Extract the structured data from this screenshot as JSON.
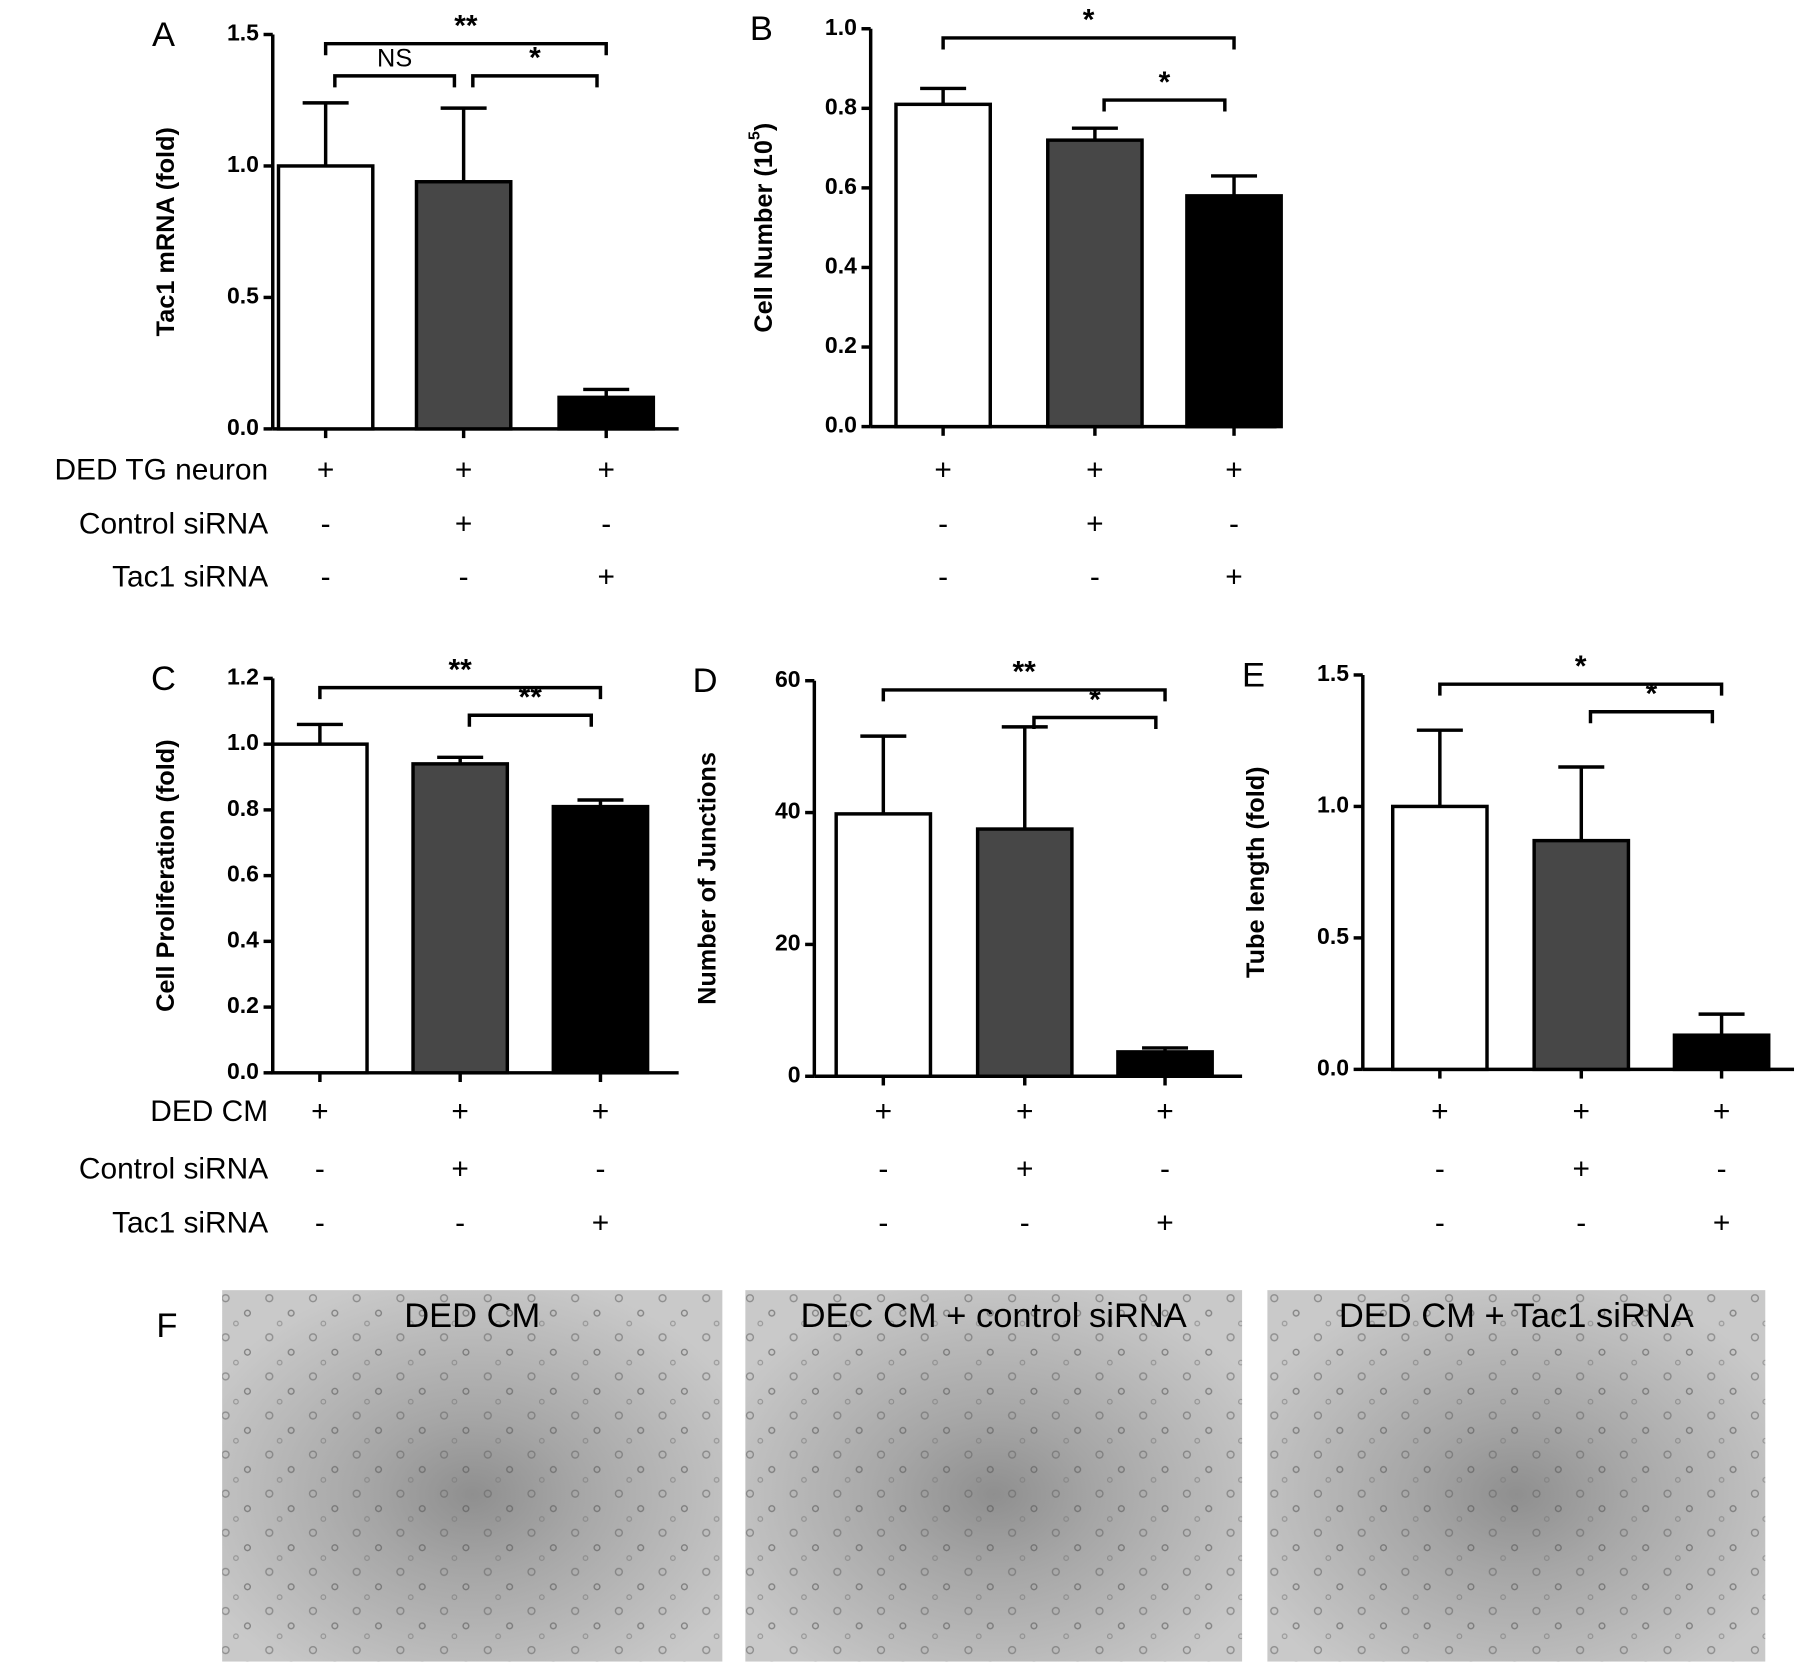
{
  "chart_data": [
    {
      "type": "bar",
      "panel": "A",
      "y_label": "Tac1 mRNA (fold)",
      "values": [
        1.0,
        0.94,
        0.12
      ],
      "errors": [
        0.24,
        0.28,
        0.03
      ],
      "colors": [
        "#ffffff",
        "#474747",
        "#000000"
      ],
      "ylim": [
        0,
        1.5
      ],
      "yticks": [
        {
          "value": 0,
          "label": "0.0"
        },
        {
          "value": 0.5,
          "label": "0.5"
        },
        {
          "value": 1,
          "label": "1.0"
        },
        {
          "value": 1.5,
          "label": "1.5"
        }
      ],
      "significance": [
        {
          "pair": [
            0,
            2
          ],
          "label": "**"
        },
        {
          "pair": [
            0,
            1
          ],
          "label": "NS"
        },
        {
          "pair": [
            1,
            2
          ],
          "label": "*"
        }
      ],
      "conditions": [
        {
          "label": "DED TG neuron",
          "values": [
            "+",
            "+",
            "+"
          ]
        },
        {
          "label": "Control siRNA",
          "values": [
            "-",
            "+",
            "-"
          ]
        },
        {
          "label": "Tac1 siRNA",
          "values": [
            "-",
            "-",
            "+"
          ]
        }
      ]
    },
    {
      "type": "bar",
      "panel": "B",
      "y_label": "Cell Number (10",
      "y_label_sup": "5",
      "y_label_end": ")",
      "values": [
        0.81,
        0.72,
        0.58
      ],
      "errors": [
        0.04,
        0.03,
        0.05
      ],
      "colors": [
        "#ffffff",
        "#474747",
        "#000000"
      ],
      "ylim": [
        0,
        1
      ],
      "yticks": [
        {
          "value": 0,
          "label": "0.0"
        },
        {
          "value": 0.2,
          "label": "0.2"
        },
        {
          "value": 0.4,
          "label": "0.4"
        },
        {
          "value": 0.6,
          "label": "0.6"
        },
        {
          "value": 0.8,
          "label": "0.8"
        },
        {
          "value": 1,
          "label": "1.0"
        }
      ],
      "significance": [
        {
          "pair": [
            0,
            2
          ],
          "label": "*"
        },
        {
          "pair": [
            1,
            2
          ],
          "label": "*"
        }
      ],
      "conditions": [
        {
          "values": [
            "+",
            "+",
            "+"
          ]
        },
        {
          "values": [
            "-",
            "+",
            "-"
          ]
        },
        {
          "values": [
            "-",
            "-",
            "+"
          ]
        }
      ]
    },
    {
      "type": "bar",
      "panel": "C",
      "y_label": "Cell Proliferation (fold)",
      "values": [
        1.0,
        0.94,
        0.81
      ],
      "errors": [
        0.06,
        0.02,
        0.02
      ],
      "colors": [
        "#ffffff",
        "#474747",
        "#000000"
      ],
      "ylim": [
        0,
        1.2
      ],
      "yticks": [
        {
          "value": 0,
          "label": "0.0"
        },
        {
          "value": 0.2,
          "label": "0.2"
        },
        {
          "value": 0.4,
          "label": "0.4"
        },
        {
          "value": 0.6,
          "label": "0.6"
        },
        {
          "value": 0.8,
          "label": "0.8"
        },
        {
          "value": 1,
          "label": "1.0"
        },
        {
          "value": 1.2,
          "label": "1.2"
        }
      ],
      "significance": [
        {
          "pair": [
            0,
            2
          ],
          "label": "**"
        },
        {
          "pair": [
            1,
            2
          ],
          "label": "**"
        }
      ],
      "conditions": [
        {
          "label": "DED CM",
          "values": [
            "+",
            "+",
            "+"
          ]
        },
        {
          "label": "Control siRNA",
          "values": [
            "-",
            "+",
            "-"
          ]
        },
        {
          "label": "Tac1 siRNA",
          "values": [
            "-",
            "-",
            "+"
          ]
        }
      ]
    },
    {
      "type": "bar",
      "panel": "D",
      "y_label": "Number of Junctions",
      "values": [
        39.8,
        37.5,
        3.7
      ],
      "errors": [
        11.8,
        15.5,
        0.6
      ],
      "colors": [
        "#ffffff",
        "#474747",
        "#000000"
      ],
      "ylim": [
        0,
        60
      ],
      "yticks": [
        0,
        20,
        40,
        60
      ],
      "significance": [
        {
          "pair": [
            0,
            2
          ],
          "label": "**"
        },
        {
          "pair": [
            1,
            2
          ],
          "label": "*"
        }
      ],
      "conditions": [
        {
          "values": [
            "+",
            "+",
            "+"
          ]
        },
        {
          "values": [
            "-",
            "+",
            "-"
          ]
        },
        {
          "values": [
            "-",
            "-",
            "+"
          ]
        }
      ]
    },
    {
      "type": "bar",
      "panel": "E",
      "y_label": "Tube length (fold)",
      "values": [
        1.0,
        0.87,
        0.13
      ],
      "errors": [
        0.29,
        0.28,
        0.08
      ],
      "colors": [
        "#ffffff",
        "#474747",
        "#000000"
      ],
      "ylim": [
        0,
        1.5
      ],
      "yticks": [
        {
          "value": 0,
          "label": "0.0"
        },
        {
          "value": 0.5,
          "label": "0.5"
        },
        {
          "value": 1,
          "label": "1.0"
        },
        {
          "value": 1.5,
          "label": "1.5"
        }
      ],
      "significance": [
        {
          "pair": [
            0,
            2
          ],
          "label": "*"
        },
        {
          "pair": [
            1,
            2
          ],
          "label": "*"
        }
      ],
      "conditions": [
        {
          "values": [
            "+",
            "+",
            "+"
          ]
        },
        {
          "values": [
            "-",
            "+",
            "-"
          ]
        },
        {
          "values": [
            "-",
            "-",
            "+"
          ]
        }
      ]
    }
  ],
  "photo_panel": {
    "panel": "F",
    "captions": [
      "DED CM",
      "DEC CM + control siRNA",
      "DED CM + Tac1 siRNA"
    ]
  }
}
